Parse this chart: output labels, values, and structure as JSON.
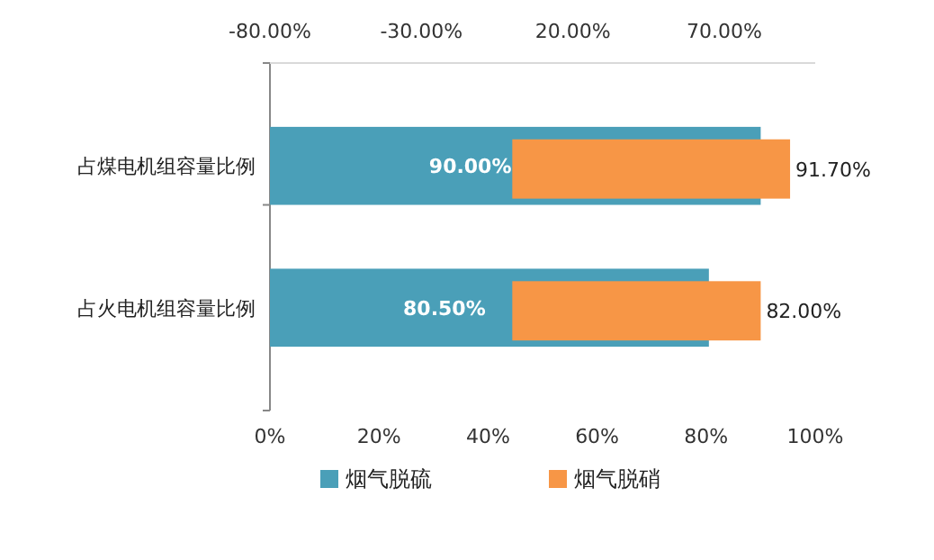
{
  "chart_data": {
    "type": "bar",
    "orientation": "horizontal",
    "categories": [
      "占煤电机组容量比例",
      "占火电机组容量比例"
    ],
    "series": [
      {
        "name": "烟气脱硫",
        "color": "#4a9fb8",
        "values": [
          90,
          80.5
        ],
        "value_labels": [
          "90.00%",
          "80.50%"
        ]
      },
      {
        "name": "烟气脱硝",
        "color": "#f79646",
        "values": [
          91.7,
          82
        ],
        "axis": "x2",
        "value_labels": [
          "91.70%",
          "82.00%"
        ]
      }
    ],
    "xlim": [
      0,
      100
    ],
    "xticks": [
      {
        "value": 0,
        "label": "0%"
      },
      {
        "value": 20,
        "label": "20%"
      },
      {
        "value": 40,
        "label": "40%"
      },
      {
        "value": 60,
        "label": "60%"
      },
      {
        "value": 80,
        "label": "80%"
      },
      {
        "value": 100,
        "label": "100%"
      }
    ],
    "x2lim": [
      -80,
      100
    ],
    "x2ticks": [
      {
        "value": -80,
        "label": "-80.00%"
      },
      {
        "value": -30,
        "label": "-30.00%"
      },
      {
        "value": 20,
        "label": "20.00%"
      },
      {
        "value": 70,
        "label": "70.00%"
      }
    ],
    "legend": "bottom"
  }
}
